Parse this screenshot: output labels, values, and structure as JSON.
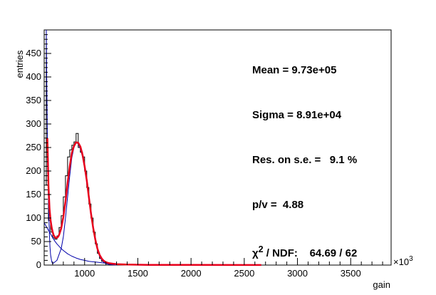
{
  "chart_data": {
    "type": "histogram",
    "xlabel": "gain",
    "ylabel": "entries",
    "x_multiplier_label": "×10",
    "x_multiplier_exponent": "3",
    "xlim": [
      620,
      3880
    ],
    "ylim": [
      0,
      500
    ],
    "x_ticks": [
      1000,
      1500,
      2000,
      2500,
      3000,
      3500
    ],
    "x_tick_labels": [
      "1000",
      "1500",
      "2000",
      "2500",
      "3000",
      "3500"
    ],
    "y_ticks": [
      0,
      50,
      100,
      150,
      200,
      250,
      300,
      350,
      400,
      450
    ],
    "y_tick_labels": [
      "0",
      "50",
      "100",
      "150",
      "200",
      "250",
      "300",
      "350",
      "400",
      "450"
    ],
    "stats": {
      "mean_label": "Mean = 9.73e+05",
      "sigma_label": "Sigma = 8.91e+04",
      "res_label": "Res. on s.e. =   9.1 %",
      "pv_label": "p/v =  4.88",
      "chi_symbol": "χ",
      "chi_sup": "2",
      "chi_rest": " / NDF:    64.69 / 62"
    },
    "histogram": {
      "bin_width": 20,
      "x": [
        620,
        640,
        660,
        680,
        700,
        720,
        740,
        760,
        780,
        800,
        820,
        840,
        860,
        880,
        900,
        920,
        940,
        960,
        980,
        1000,
        1020,
        1040,
        1060,
        1080,
        1100,
        1120,
        1140,
        1160,
        1180,
        1200,
        1220,
        1240,
        1260,
        1280,
        1300,
        1320,
        1340,
        1360,
        1380,
        1400,
        1420,
        1440,
        1460,
        1480,
        1500
      ],
      "counts": [
        500,
        170,
        95,
        70,
        58,
        55,
        62,
        80,
        105,
        145,
        190,
        230,
        245,
        255,
        262,
        280,
        250,
        240,
        230,
        200,
        165,
        130,
        100,
        70,
        45,
        25,
        14,
        8,
        5,
        3,
        2,
        2,
        1,
        1,
        1,
        1,
        0,
        1,
        0,
        0,
        1,
        0,
        0,
        0,
        1
      ]
    },
    "fit_total": {
      "x": [
        650,
        660,
        670,
        680,
        690,
        700,
        710,
        720,
        730,
        740,
        750,
        760,
        780,
        800,
        820,
        840,
        860,
        880,
        900,
        920,
        940,
        960,
        980,
        1000,
        1020,
        1040,
        1060,
        1080,
        1100,
        1120,
        1140,
        1160,
        1180,
        1200,
        1230,
        1260,
        1300,
        1400,
        1600,
        2000,
        2400,
        2660
      ],
      "y": [
        270,
        170,
        120,
        95,
        80,
        70,
        63,
        60,
        58,
        58,
        60,
        64,
        78,
        102,
        135,
        175,
        210,
        238,
        253,
        261,
        260,
        252,
        235,
        210,
        180,
        145,
        110,
        80,
        55,
        35,
        22,
        14,
        9,
        6,
        4,
        3,
        2,
        1,
        0.5,
        0.3,
        0.2,
        0.2
      ]
    },
    "fit_peak": {
      "x": [
        700,
        740,
        780,
        800,
        820,
        840,
        860,
        880,
        900,
        920,
        940,
        960,
        980,
        1000,
        1020,
        1040,
        1060,
        1080,
        1100,
        1120,
        1140,
        1160,
        1180,
        1200,
        1240,
        1300
      ],
      "y": [
        3,
        10,
        35,
        60,
        100,
        145,
        190,
        228,
        250,
        260,
        258,
        247,
        230,
        205,
        176,
        142,
        108,
        78,
        52,
        32,
        19,
        11,
        6,
        3,
        1,
        0
      ]
    },
    "fit_background": {
      "x": [
        620,
        640,
        660,
        680,
        700,
        720,
        740,
        760,
        780,
        800,
        840,
        880,
        920,
        960,
        1000,
        1040,
        1080,
        1120,
        1160,
        1200,
        1300
      ],
      "y": [
        90,
        82,
        74,
        66,
        58,
        51,
        45,
        40,
        35,
        31,
        24,
        19,
        15,
        12,
        10,
        8,
        7,
        6,
        5,
        4,
        3
      ]
    },
    "fit_exponential": {
      "x": [
        640,
        645,
        650,
        655,
        660,
        665,
        670,
        675,
        680,
        690,
        700
      ],
      "y": [
        500,
        380,
        280,
        200,
        140,
        95,
        60,
        38,
        22,
        8,
        2
      ]
    },
    "colors": {
      "histogram": "#000000",
      "total_fit": "#e8001c",
      "component_fit": "#0000aa"
    }
  }
}
